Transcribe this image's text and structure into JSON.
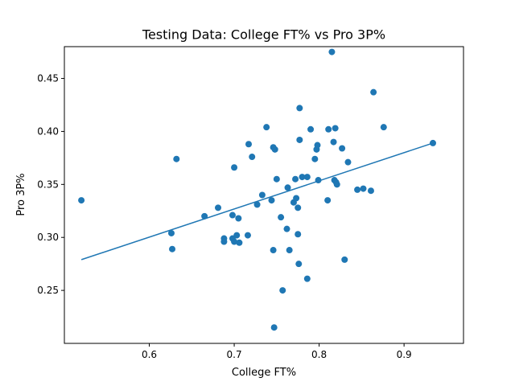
{
  "chart_data": {
    "type": "scatter",
    "title": "Testing Data: College FT% vs Pro 3P%",
    "xlabel": "College FT%",
    "ylabel": "Pro 3P%",
    "xlim": [
      0.5,
      0.97
    ],
    "ylim": [
      0.2,
      0.48
    ],
    "x_ticks": [
      0.6,
      0.7,
      0.8,
      0.9
    ],
    "x_tick_labels": [
      "0.6",
      "0.7",
      "0.8",
      "0.9"
    ],
    "y_ticks": [
      0.25,
      0.3,
      0.35,
      0.4,
      0.45
    ],
    "y_tick_labels": [
      "0.25",
      "0.30",
      "0.35",
      "0.40",
      "0.45"
    ],
    "grid": false,
    "color": "#1f77b4",
    "points": [
      [
        0.52,
        0.335
      ],
      [
        0.626,
        0.304
      ],
      [
        0.627,
        0.289
      ],
      [
        0.632,
        0.374
      ],
      [
        0.665,
        0.32
      ],
      [
        0.681,
        0.328
      ],
      [
        0.688,
        0.299
      ],
      [
        0.688,
        0.296
      ],
      [
        0.698,
        0.321
      ],
      [
        0.698,
        0.299
      ],
      [
        0.7,
        0.366
      ],
      [
        0.7,
        0.296
      ],
      [
        0.703,
        0.302
      ],
      [
        0.705,
        0.318
      ],
      [
        0.706,
        0.295
      ],
      [
        0.716,
        0.302
      ],
      [
        0.717,
        0.388
      ],
      [
        0.721,
        0.376
      ],
      [
        0.727,
        0.331
      ],
      [
        0.733,
        0.34
      ],
      [
        0.738,
        0.404
      ],
      [
        0.744,
        0.335
      ],
      [
        0.746,
        0.385
      ],
      [
        0.746,
        0.288
      ],
      [
        0.747,
        0.215
      ],
      [
        0.748,
        0.383
      ],
      [
        0.75,
        0.355
      ],
      [
        0.755,
        0.319
      ],
      [
        0.757,
        0.25
      ],
      [
        0.762,
        0.308
      ],
      [
        0.763,
        0.347
      ],
      [
        0.765,
        0.288
      ],
      [
        0.77,
        0.333
      ],
      [
        0.772,
        0.355
      ],
      [
        0.773,
        0.337
      ],
      [
        0.775,
        0.303
      ],
      [
        0.775,
        0.328
      ],
      [
        0.776,
        0.275
      ],
      [
        0.777,
        0.392
      ],
      [
        0.777,
        0.422
      ],
      [
        0.78,
        0.357
      ],
      [
        0.786,
        0.357
      ],
      [
        0.786,
        0.261
      ],
      [
        0.79,
        0.402
      ],
      [
        0.795,
        0.374
      ],
      [
        0.797,
        0.383
      ],
      [
        0.798,
        0.387
      ],
      [
        0.799,
        0.354
      ],
      [
        0.81,
        0.335
      ],
      [
        0.811,
        0.402
      ],
      [
        0.815,
        0.475
      ],
      [
        0.817,
        0.39
      ],
      [
        0.818,
        0.354
      ],
      [
        0.819,
        0.403
      ],
      [
        0.82,
        0.352
      ],
      [
        0.821,
        0.35
      ],
      [
        0.827,
        0.384
      ],
      [
        0.83,
        0.279
      ],
      [
        0.834,
        0.371
      ],
      [
        0.845,
        0.345
      ],
      [
        0.852,
        0.346
      ],
      [
        0.861,
        0.344
      ],
      [
        0.864,
        0.437
      ],
      [
        0.876,
        0.404
      ],
      [
        0.934,
        0.389
      ]
    ],
    "trendline": {
      "type": "linear",
      "x": [
        0.52,
        0.934
      ],
      "y": [
        0.279,
        0.389
      ]
    }
  }
}
